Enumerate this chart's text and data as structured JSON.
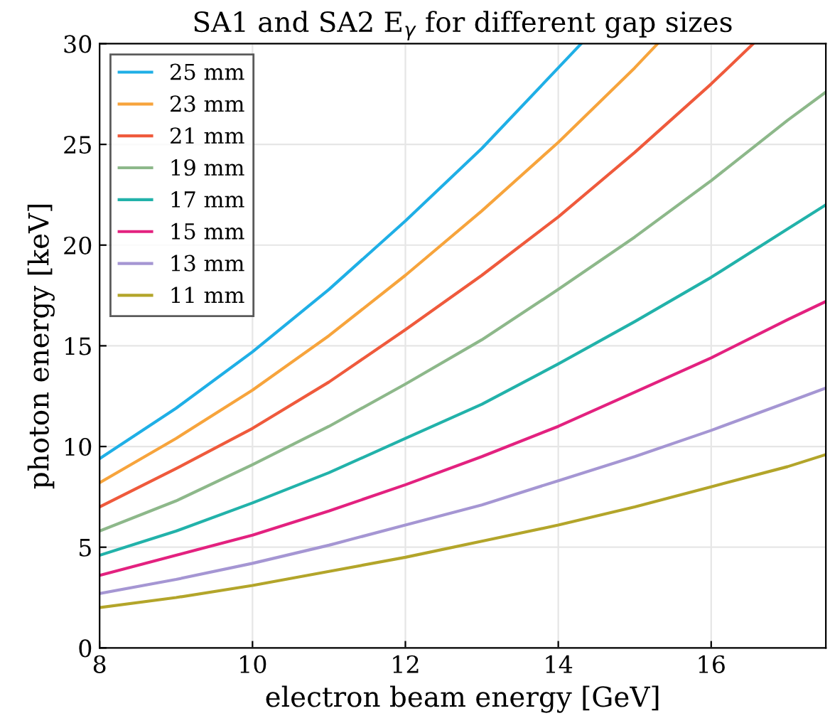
{
  "chart_data": {
    "type": "line",
    "title": "SA1 and SA2 E$_{γ}$ for different gap sizes",
    "xlabel": "electron beam energy [GeV]",
    "ylabel": "photon energy [keV]",
    "series": [
      {
        "name": "25 mm",
        "color": "#1fafe6",
        "x": [
          8,
          9,
          10,
          11,
          12,
          13,
          14,
          14.3
        ],
        "values": [
          9.4,
          11.9,
          14.7,
          17.8,
          21.2,
          24.8,
          28.8,
          30
        ]
      },
      {
        "name": "23 mm",
        "color": "#f7a43c",
        "x": [
          8,
          9,
          10,
          11,
          12,
          13,
          14,
          15,
          15.3
        ],
        "values": [
          8.2,
          10.4,
          12.8,
          15.5,
          18.5,
          21.7,
          25.1,
          28.8,
          30
        ]
      },
      {
        "name": "21 mm",
        "color": "#ef5a3c",
        "x": [
          8,
          9,
          10,
          11,
          12,
          13,
          14,
          15,
          16,
          16.55
        ],
        "values": [
          7.0,
          8.9,
          10.9,
          13.2,
          15.8,
          18.5,
          21.4,
          24.6,
          28.0,
          30
        ]
      },
      {
        "name": "19 mm",
        "color": "#8db88a",
        "x": [
          8,
          9,
          10,
          11,
          12,
          13,
          14,
          15,
          16,
          17,
          17.5
        ],
        "values": [
          5.8,
          7.3,
          9.1,
          11.0,
          13.1,
          15.3,
          17.8,
          20.4,
          23.2,
          26.2,
          27.6
        ]
      },
      {
        "name": "17 mm",
        "color": "#22b2aa",
        "x": [
          8,
          9,
          10,
          11,
          12,
          13,
          14,
          15,
          16,
          17,
          17.5
        ],
        "values": [
          4.6,
          5.8,
          7.2,
          8.7,
          10.4,
          12.1,
          14.1,
          16.2,
          18.4,
          20.8,
          22.0
        ]
      },
      {
        "name": "15 mm",
        "color": "#e3217f",
        "x": [
          8,
          9,
          10,
          11,
          12,
          13,
          14,
          15,
          16,
          17,
          17.5
        ],
        "values": [
          3.6,
          4.6,
          5.6,
          6.8,
          8.1,
          9.5,
          11.0,
          12.7,
          14.4,
          16.3,
          17.2
        ]
      },
      {
        "name": "13 mm",
        "color": "#a596d3",
        "x": [
          8,
          9,
          10,
          11,
          12,
          13,
          14,
          15,
          16,
          17,
          17.5
        ],
        "values": [
          2.7,
          3.4,
          4.2,
          5.1,
          6.1,
          7.1,
          8.3,
          9.5,
          10.8,
          12.2,
          12.9
        ]
      },
      {
        "name": "11 mm",
        "color": "#b3a52a",
        "x": [
          8,
          9,
          10,
          11,
          12,
          13,
          14,
          15,
          16,
          17,
          17.5
        ],
        "values": [
          2.0,
          2.5,
          3.1,
          3.8,
          4.5,
          5.3,
          6.1,
          7.0,
          8.0,
          9.0,
          9.6
        ]
      }
    ],
    "xlim": [
      8,
      17.5
    ],
    "xticks": [
      8,
      10,
      12,
      14,
      16
    ],
    "ylim": [
      0,
      30
    ],
    "yticks": [
      0,
      5,
      10,
      15,
      20,
      25,
      30
    ],
    "grid": true,
    "legend": "top left",
    "marker": "none",
    "line_style": "solid"
  }
}
